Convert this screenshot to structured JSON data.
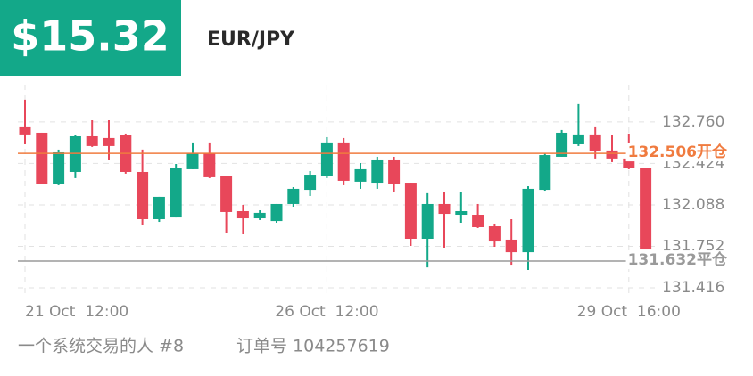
{
  "header": {
    "price": "$15.32",
    "symbol": "EUR/JPY"
  },
  "chart_data": {
    "type": "candlestick",
    "up_color": "#13a889",
    "down_color": "#e8475a",
    "grid": true,
    "ylim": [
      131.365,
      133.063
    ],
    "yticks": [
      {
        "value": 132.76,
        "label": "132.760"
      },
      132.424,
      132.088,
      131.752,
      131.416
    ],
    "xticks": [
      {
        "value": 0,
        "label": "21 Oct  12:00"
      },
      {
        "value": 18,
        "label": "26 Oct  12:00"
      },
      {
        "value": 36,
        "label": "29 Oct  16:00"
      }
    ],
    "annotations": [
      {
        "value": 132.506,
        "label": "132.506开仓",
        "color": "#f07b3f"
      },
      {
        "value": 131.632,
        "label": "131.632平仓",
        "color": "#9a9a9a"
      }
    ],
    "open": [
      132.724,
      132.673,
      132.261,
      132.355,
      132.644,
      132.63,
      132.652,
      132.355,
      131.972,
      131.986,
      132.377,
      132.507,
      132.319,
      132.037,
      131.979,
      131.957,
      132.095,
      132.21,
      132.319,
      132.594,
      132.276,
      132.268,
      132.449,
      132.268,
      131.813,
      132.095,
      132.008,
      132.008,
      131.914,
      131.806,
      131.704,
      132.21,
      132.478,
      132.579,
      132.659,
      132.529,
      132.464,
      132.384
    ],
    "high": [
      132.941,
      132.673,
      132.536,
      132.652,
      132.774,
      132.774,
      132.666,
      132.536,
      132.153,
      132.42,
      132.594,
      132.594,
      132.319,
      132.088,
      132.044,
      132.095,
      132.232,
      132.362,
      132.637,
      132.63,
      132.427,
      132.478,
      132.478,
      132.268,
      132.182,
      132.196,
      132.189,
      132.095,
      131.936,
      131.972,
      132.239,
      132.507,
      132.695,
      132.905,
      132.724,
      132.652,
      132.666,
      132.384
    ],
    "low": [
      132.579,
      132.261,
      132.247,
      132.305,
      132.558,
      132.449,
      132.341,
      131.921,
      131.95,
      131.986,
      132.377,
      132.305,
      131.856,
      131.849,
      131.965,
      131.943,
      132.073,
      132.16,
      132.305,
      132.247,
      132.218,
      132.218,
      132.196,
      131.755,
      131.581,
      131.741,
      131.943,
      131.9,
      131.748,
      131.603,
      131.56,
      132.203,
      132.478,
      132.565,
      132.464,
      132.435,
      132.377,
      131.726
    ],
    "close": [
      132.659,
      132.261,
      132.514,
      132.644,
      132.565,
      132.565,
      132.355,
      131.972,
      132.153,
      132.391,
      132.507,
      132.312,
      132.03,
      131.979,
      132.023,
      132.095,
      132.218,
      132.333,
      132.594,
      132.283,
      132.377,
      132.449,
      132.261,
      131.813,
      132.095,
      132.015,
      132.037,
      131.907,
      131.791,
      131.704,
      132.218,
      132.492,
      132.673,
      132.659,
      132.521,
      132.464,
      132.384,
      131.726
    ]
  },
  "footer": {
    "author": "一个系统交易的人 #8",
    "order": "订单号 104257619"
  }
}
